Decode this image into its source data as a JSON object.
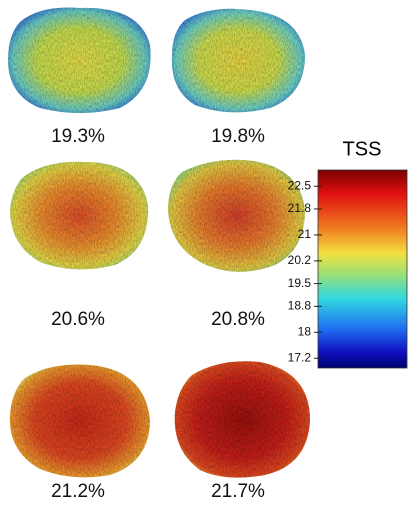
{
  "panels": [
    {
      "label": "19.3%"
    },
    {
      "label": "19.8%"
    },
    {
      "label": "20.6%"
    },
    {
      "label": "20.8%"
    },
    {
      "label": "21.2%"
    },
    {
      "label": "21.7%"
    }
  ],
  "colorbar": {
    "title": "TSS",
    "lim": [
      16.9,
      23.0
    ],
    "ticks": [
      22.5,
      21.8,
      21,
      20.2,
      19.5,
      18.8,
      18,
      17.2
    ]
  }
}
